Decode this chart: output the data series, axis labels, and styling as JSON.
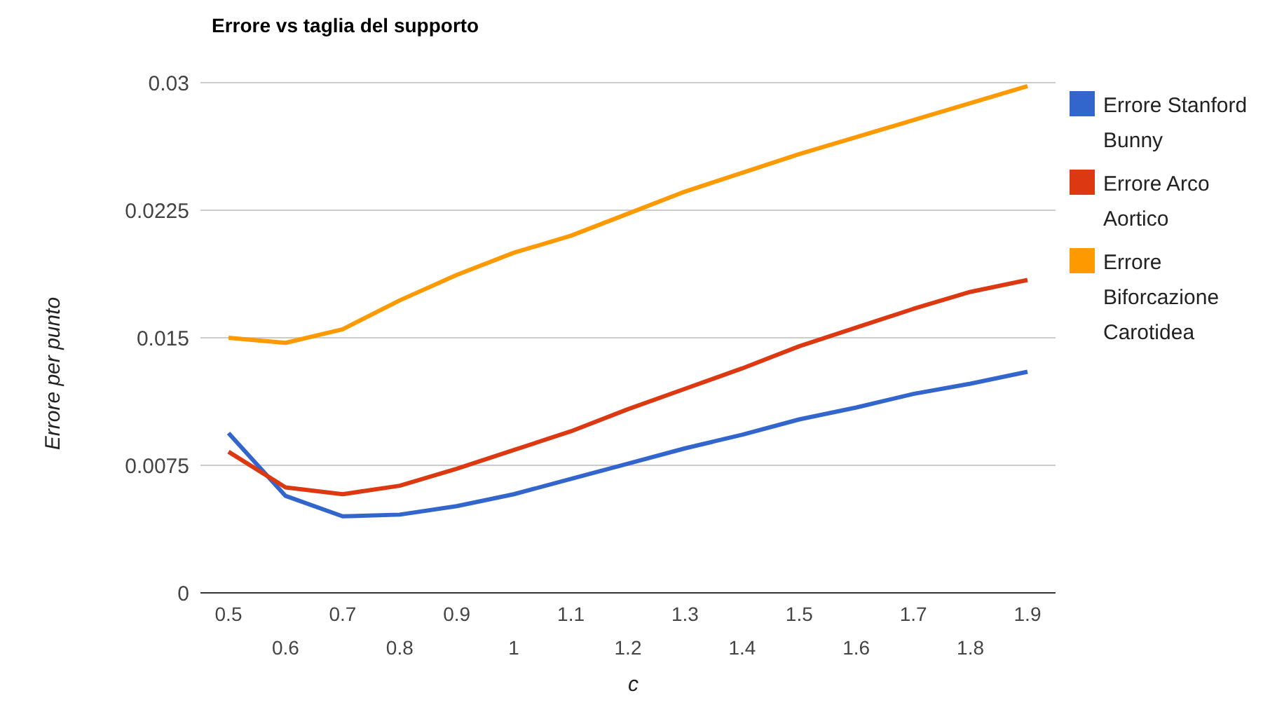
{
  "chart_data": {
    "type": "line",
    "title": "Errore vs taglia del supporto",
    "xlabel": "c",
    "ylabel": "Errore per punto",
    "categories": [
      "0.5",
      "0.6",
      "0.7",
      "0.8",
      "0.9",
      "1",
      "1.1",
      "1.2",
      "1.3",
      "1.4",
      "1.5",
      "1.6",
      "1.7",
      "1.8",
      "1.9"
    ],
    "series": [
      {
        "name": "Errore Stanford Bunny",
        "color": "#3366cc",
        "values": [
          0.0094,
          0.0057,
          0.0045,
          0.0046,
          0.0051,
          0.0058,
          0.0067,
          0.0076,
          0.0085,
          0.0093,
          0.0102,
          0.0109,
          0.0117,
          0.0123,
          0.013
        ]
      },
      {
        "name": "Errore Arco Aortico",
        "color": "#dc3912",
        "values": [
          0.0083,
          0.0062,
          0.0058,
          0.0063,
          0.0073,
          0.0084,
          0.0095,
          0.0108,
          0.012,
          0.0132,
          0.0145,
          0.0156,
          0.0167,
          0.0177,
          0.0184
        ]
      },
      {
        "name": "Errore Biforcazione Carotidea",
        "color": "#ff9900",
        "values": [
          0.015,
          0.0147,
          0.0155,
          0.0172,
          0.0187,
          0.02,
          0.021,
          0.0223,
          0.0236,
          0.0247,
          0.0258,
          0.0268,
          0.0278,
          0.0288,
          0.0298
        ]
      }
    ],
    "ylim": [
      0,
      0.03
    ],
    "yticks": [
      0,
      0.0075,
      0.015,
      0.0225,
      0.03
    ],
    "grid": "y",
    "legend": "right",
    "marker": "none",
    "line_style": "solid"
  }
}
